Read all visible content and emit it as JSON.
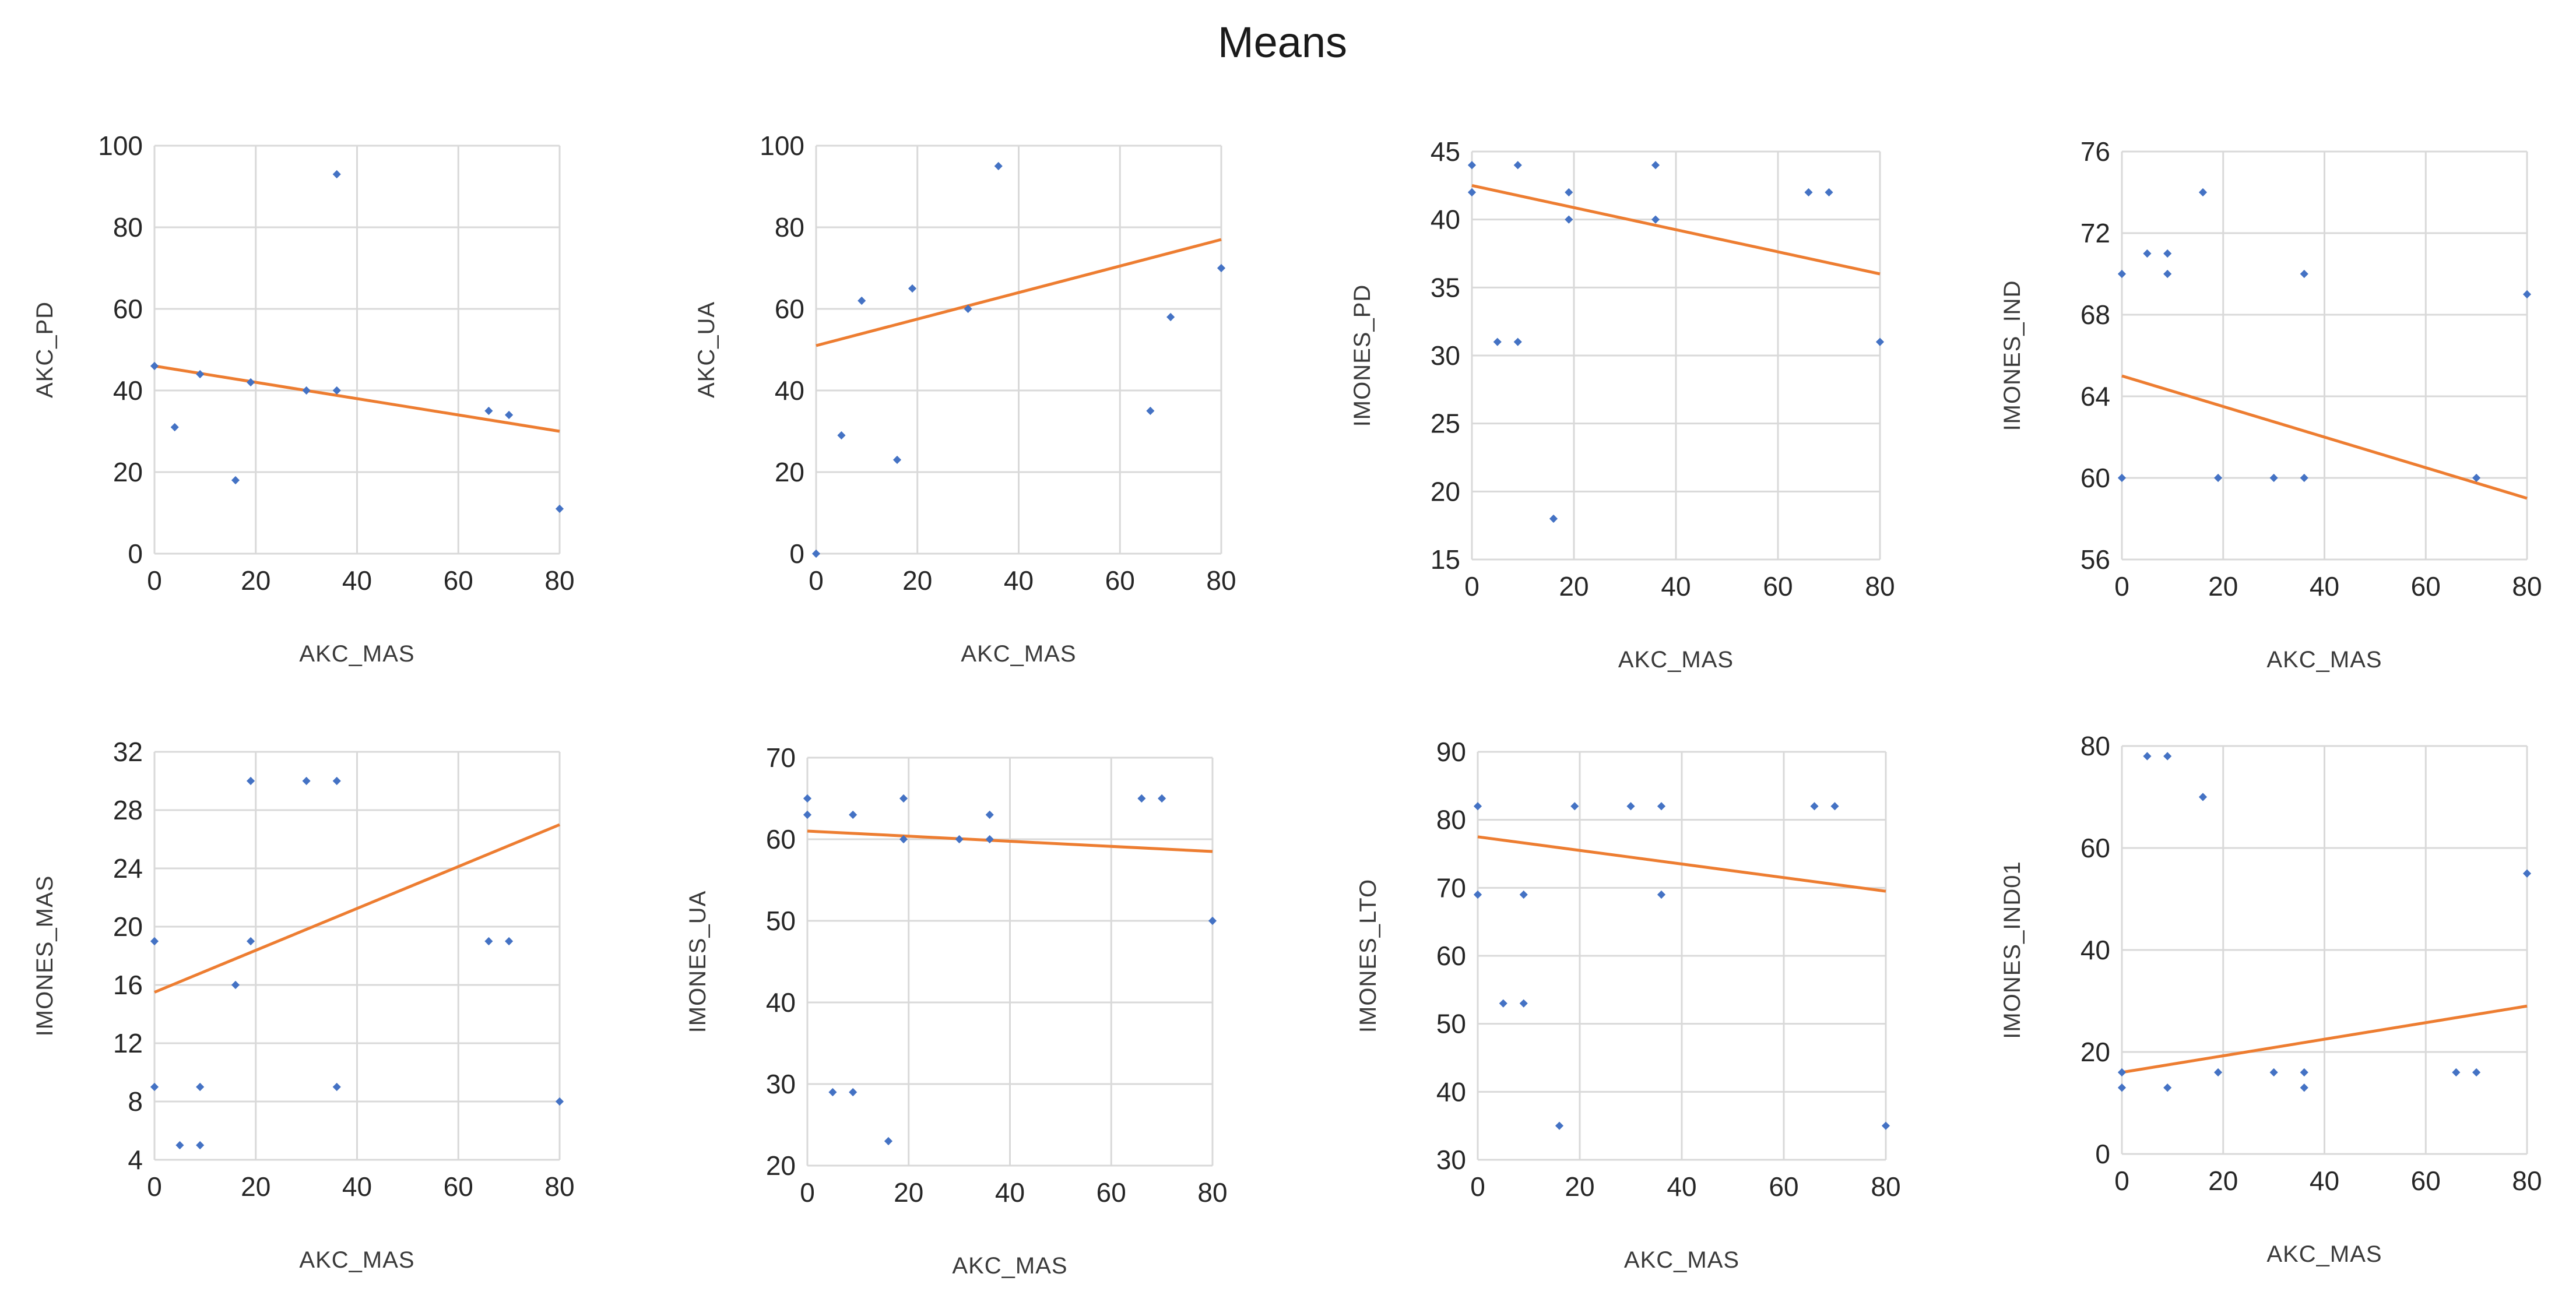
{
  "title": "Means",
  "colors": {
    "points": "#4472c4",
    "trendline": "#ed7d31",
    "grid": "#d9d9d9"
  },
  "chart_data": [
    {
      "type": "scatter",
      "xlabel": "AKC_MAS",
      "ylabel": "AKC_PD",
      "xlim": [
        0,
        80
      ],
      "ylim": [
        0,
        100
      ],
      "xticks": [
        0,
        20,
        40,
        60,
        80
      ],
      "yticks": [
        0,
        20,
        40,
        60,
        80,
        100
      ],
      "points": [
        [
          0,
          46
        ],
        [
          4,
          31
        ],
        [
          9,
          44
        ],
        [
          16,
          18
        ],
        [
          19,
          42
        ],
        [
          30,
          40
        ],
        [
          36,
          93
        ],
        [
          36,
          40
        ],
        [
          66,
          35
        ],
        [
          70,
          34
        ],
        [
          80,
          11
        ]
      ],
      "trendline": [
        [
          0,
          46
        ],
        [
          80,
          30
        ]
      ]
    },
    {
      "type": "scatter",
      "xlabel": "AKC_MAS",
      "ylabel": "AKC_UA",
      "xlim": [
        0,
        80
      ],
      "ylim": [
        0,
        100
      ],
      "xticks": [
        0,
        20,
        40,
        60,
        80
      ],
      "yticks": [
        0,
        20,
        40,
        60,
        80,
        100
      ],
      "points": [
        [
          0,
          0
        ],
        [
          5,
          29
        ],
        [
          9,
          62
        ],
        [
          16,
          23
        ],
        [
          19,
          65
        ],
        [
          30,
          60
        ],
        [
          36,
          95
        ],
        [
          66,
          35
        ],
        [
          70,
          58
        ],
        [
          80,
          70
        ]
      ],
      "trendline": [
        [
          0,
          51
        ],
        [
          80,
          77
        ]
      ]
    },
    {
      "type": "scatter",
      "xlabel": "AKC_MAS",
      "ylabel": "IMONES_PD",
      "xlim": [
        0,
        80
      ],
      "ylim": [
        15,
        45
      ],
      "xticks": [
        0,
        20,
        40,
        60,
        80
      ],
      "yticks": [
        15,
        20,
        25,
        30,
        35,
        40,
        45
      ],
      "points": [
        [
          0,
          44
        ],
        [
          0,
          42
        ],
        [
          5,
          31
        ],
        [
          9,
          31
        ],
        [
          9,
          44
        ],
        [
          16,
          18
        ],
        [
          19,
          42
        ],
        [
          19,
          40
        ],
        [
          36,
          44
        ],
        [
          36,
          40
        ],
        [
          66,
          42
        ],
        [
          70,
          42
        ],
        [
          80,
          31
        ]
      ],
      "trendline": [
        [
          0,
          42.5
        ],
        [
          80,
          36
        ]
      ]
    },
    {
      "type": "scatter",
      "xlabel": "AKC_MAS",
      "ylabel": "IMONES_IND",
      "xlim": [
        0,
        80
      ],
      "ylim": [
        56,
        76
      ],
      "xticks": [
        0,
        20,
        40,
        60,
        80
      ],
      "yticks": [
        56,
        60,
        64,
        68,
        72,
        76
      ],
      "points": [
        [
          0,
          70
        ],
        [
          0,
          60
        ],
        [
          5,
          71
        ],
        [
          9,
          71
        ],
        [
          9,
          70
        ],
        [
          16,
          74
        ],
        [
          19,
          60
        ],
        [
          30,
          60
        ],
        [
          36,
          60
        ],
        [
          36,
          70
        ],
        [
          70,
          60
        ],
        [
          80,
          69
        ]
      ],
      "trendline": [
        [
          0,
          65
        ],
        [
          80,
          59
        ]
      ]
    },
    {
      "type": "scatter",
      "xlabel": "AKC_MAS",
      "ylabel": "IMONES_MAS",
      "xlim": [
        0,
        80
      ],
      "ylim": [
        4,
        32
      ],
      "xticks": [
        0,
        20,
        40,
        60,
        80
      ],
      "yticks": [
        4,
        8,
        12,
        16,
        20,
        24,
        28,
        32
      ],
      "points": [
        [
          0,
          19
        ],
        [
          0,
          9
        ],
        [
          5,
          5
        ],
        [
          9,
          5
        ],
        [
          9,
          9
        ],
        [
          16,
          16
        ],
        [
          19,
          30
        ],
        [
          19,
          19
        ],
        [
          30,
          30
        ],
        [
          36,
          30
        ],
        [
          36,
          9
        ],
        [
          66,
          19
        ],
        [
          70,
          19
        ],
        [
          80,
          8
        ]
      ],
      "trendline": [
        [
          0,
          15.5
        ],
        [
          80,
          27
        ]
      ]
    },
    {
      "type": "scatter",
      "xlabel": "AKC_MAS",
      "ylabel": "IMONES_UA",
      "xlim": [
        0,
        80
      ],
      "ylim": [
        20,
        70
      ],
      "xticks": [
        0,
        20,
        40,
        60,
        80
      ],
      "yticks": [
        20,
        30,
        40,
        50,
        60,
        70
      ],
      "points": [
        [
          0,
          65
        ],
        [
          0,
          63
        ],
        [
          5,
          29
        ],
        [
          9,
          29
        ],
        [
          9,
          63
        ],
        [
          16,
          23
        ],
        [
          19,
          65
        ],
        [
          19,
          60
        ],
        [
          30,
          60
        ],
        [
          36,
          63
        ],
        [
          36,
          60
        ],
        [
          66,
          65
        ],
        [
          70,
          65
        ],
        [
          80,
          50
        ]
      ],
      "trendline": [
        [
          0,
          61
        ],
        [
          80,
          58.5
        ]
      ]
    },
    {
      "type": "scatter",
      "xlabel": "AKC_MAS",
      "ylabel": "IMONES_LTO",
      "xlim": [
        0,
        80
      ],
      "ylim": [
        30,
        90
      ],
      "xticks": [
        0,
        20,
        40,
        60,
        80
      ],
      "yticks": [
        30,
        40,
        50,
        60,
        70,
        80,
        90
      ],
      "points": [
        [
          0,
          82
        ],
        [
          0,
          69
        ],
        [
          5,
          53
        ],
        [
          9,
          53
        ],
        [
          9,
          69
        ],
        [
          16,
          35
        ],
        [
          19,
          82
        ],
        [
          30,
          82
        ],
        [
          36,
          82
        ],
        [
          36,
          69
        ],
        [
          66,
          82
        ],
        [
          70,
          82
        ],
        [
          80,
          35
        ]
      ],
      "trendline": [
        [
          0,
          77.5
        ],
        [
          80,
          69.5
        ]
      ]
    },
    {
      "type": "scatter",
      "xlabel": "AKC_MAS",
      "ylabel": "IMONES_IND01",
      "xlim": [
        0,
        80
      ],
      "ylim": [
        0,
        80
      ],
      "xticks": [
        0,
        20,
        40,
        60,
        80
      ],
      "yticks": [
        0,
        20,
        40,
        60,
        80
      ],
      "points": [
        [
          0,
          16
        ],
        [
          0,
          13
        ],
        [
          5,
          78
        ],
        [
          9,
          78
        ],
        [
          9,
          13
        ],
        [
          16,
          70
        ],
        [
          19,
          16
        ],
        [
          30,
          16
        ],
        [
          36,
          16
        ],
        [
          36,
          13
        ],
        [
          66,
          16
        ],
        [
          70,
          16
        ],
        [
          80,
          55
        ]
      ],
      "trendline": [
        [
          0,
          16
        ],
        [
          80,
          29
        ]
      ]
    }
  ]
}
